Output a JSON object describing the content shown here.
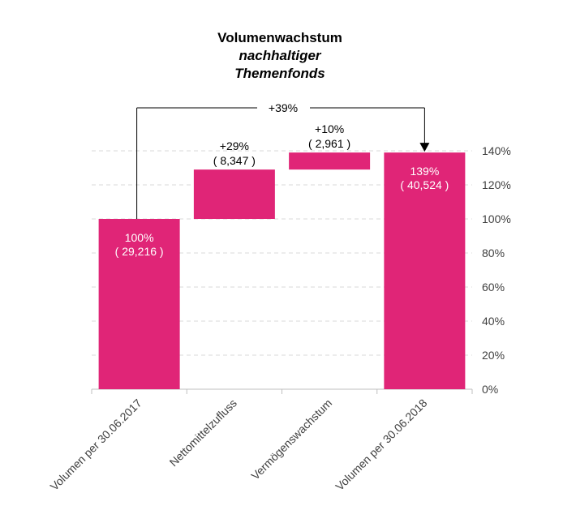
{
  "title": {
    "line1": "Volumenwachstum",
    "line2": "nachhaltiger",
    "line3": "Themenfonds"
  },
  "colors": {
    "bar": "#E02577",
    "grid": "#D9D9D9",
    "axis": "#BFBFBF",
    "bar_label": "#FFFFFF",
    "text": "#000000"
  },
  "chart_data": {
    "type": "bar",
    "subtype": "waterfall",
    "categories": [
      "Volumen per 30.06.2017",
      "Nettomittelzufluss",
      "Vermögenswachstum",
      "Volumen per 30.06.2018"
    ],
    "bars": [
      {
        "kind": "total",
        "start": 0,
        "end": 100
      },
      {
        "kind": "delta",
        "start": 100,
        "end": 129
      },
      {
        "kind": "delta",
        "start": 129,
        "end": 139
      },
      {
        "kind": "total",
        "start": 0,
        "end": 139
      }
    ],
    "labels": [
      {
        "pct": "100%",
        "abs": "( 29,216 )",
        "position": "inside"
      },
      {
        "pct": "+29%",
        "abs": "( 8,347 )",
        "position": "above"
      },
      {
        "pct": "+10%",
        "abs": "( 2,961 )",
        "position": "above"
      },
      {
        "pct": "139%",
        "abs": "( 40,524 )",
        "position": "inside"
      }
    ],
    "bridge_label": "+39%",
    "y_ticks": [
      "0%",
      "20%",
      "40%",
      "60%",
      "80%",
      "100%",
      "120%",
      "140%"
    ],
    "y_axis_side": "right",
    "ylim": [
      0,
      140
    ],
    "grid": true
  }
}
